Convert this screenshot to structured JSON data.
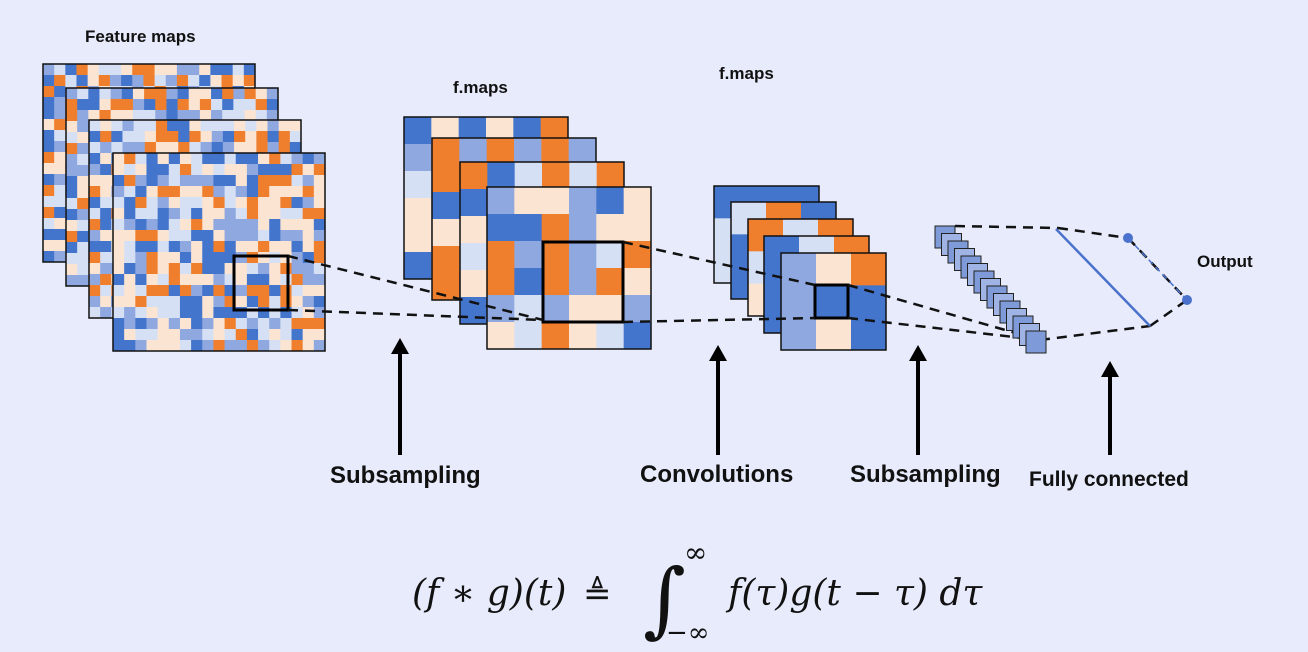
{
  "labels": {
    "feature_maps": "Feature maps",
    "fmaps_1": "f.maps",
    "fmaps_2": "f.maps",
    "output": "Output",
    "subsampling_1": "Subsampling",
    "convolutions": "Convolutions",
    "subsampling_2": "Subsampling",
    "fully_connected": "Fully connected"
  },
  "formula": {
    "lhs": "(f ∗ g)(t)",
    "defeq": "≜",
    "integral": "∫",
    "upper": "∞",
    "lower": "−∞",
    "rhs": "f(τ)g(t − τ) dτ"
  },
  "colors": {
    "background": "#e7ebfb",
    "orange": "#ef7f2d",
    "blue": "#4475cc",
    "light_blue": "#8fa8e0",
    "pale_blue": "#d6e0f4",
    "peach": "#fce4d2",
    "node": "#4a72cc"
  }
}
